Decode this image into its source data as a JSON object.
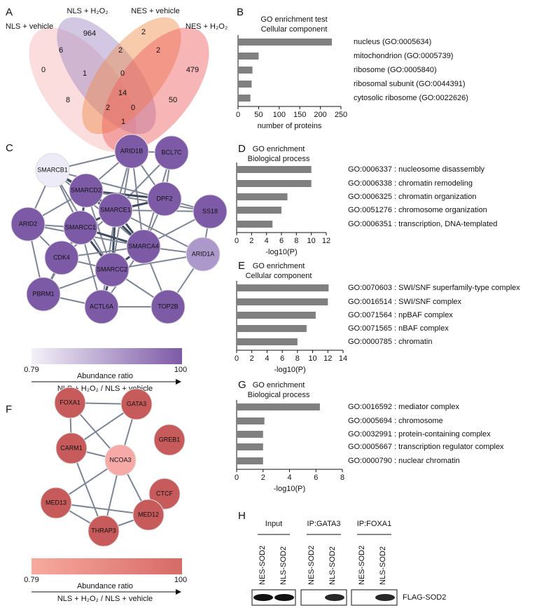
{
  "panels": {
    "a": {
      "letter": "A",
      "sets": [
        {
          "name": "NLS + vehicle",
          "color": "#f9b4b4"
        },
        {
          "name": "NLS + H₂O₂",
          "color": "#9b86c4"
        },
        {
          "name": "NES + vehicle",
          "color": "#ef8c4a"
        },
        {
          "name": "NES + H₂O₂",
          "color": "#ee5a5a"
        }
      ],
      "counts": [
        964,
        2,
        6,
        2,
        2,
        479,
        0,
        1,
        0,
        8,
        14,
        50,
        2,
        0,
        1
      ]
    },
    "b": {
      "letter": "B"
    },
    "c": {
      "letter": "C",
      "nodes": [
        {
          "label": "SMARCB1",
          "color": "#ecebf7"
        },
        {
          "label": "ARID1B",
          "color": "#7d5aa6"
        },
        {
          "label": "BCL7C",
          "color": "#7d5aa6"
        },
        {
          "label": "SMARCD2",
          "color": "#7d5aa6"
        },
        {
          "label": "DPF2",
          "color": "#7d5aa6"
        },
        {
          "label": "SS18",
          "color": "#7d5aa6"
        },
        {
          "label": "SMARCE1",
          "color": "#7d5aa6"
        },
        {
          "label": "ARID2",
          "color": "#7d5aa6"
        },
        {
          "label": "SMARCC1",
          "color": "#7d5aa6"
        },
        {
          "label": "SMARCA4",
          "color": "#7d5aa6"
        },
        {
          "label": "ARID1A",
          "color": "#ad98cb"
        },
        {
          "label": "CDK4",
          "color": "#7d5aa6"
        },
        {
          "label": "SMARCC2",
          "color": "#7d5aa6"
        },
        {
          "label": "PBRM1",
          "color": "#7d5aa6"
        },
        {
          "label": "ACTL6A",
          "color": "#7d5aa6"
        },
        {
          "label": "TOP2B",
          "color": "#7d5aa6"
        }
      ],
      "colorbar": {
        "colors": [
          "#f3f1f9",
          "#7d5aa6"
        ],
        "min_label": "0.79",
        "max_label": "100",
        "label": "Abundance ratio",
        "sublabel": "NLS + H₂O₂ / NLS + vehicle"
      }
    },
    "d": {
      "letter": "D"
    },
    "e": {
      "letter": "E"
    },
    "f": {
      "letter": "F",
      "nodes": [
        {
          "label": "FOXA1",
          "color": "#c75a5a"
        },
        {
          "label": "GATA3",
          "color": "#c75a5a"
        },
        {
          "label": "CARM1",
          "color": "#c75a5a"
        },
        {
          "label": "GREB1",
          "color": "#c75a5a"
        },
        {
          "label": "NCOA3",
          "color": "#f6a9a6"
        },
        {
          "label": "CTCF",
          "color": "#c75a5a"
        },
        {
          "label": "MED13",
          "color": "#c75a5a"
        },
        {
          "label": "MED12",
          "color": "#c75a5a"
        },
        {
          "label": "THRAP3",
          "color": "#c75a5a"
        }
      ],
      "colorbar": {
        "colors": [
          "#f8aa9e",
          "#d76a66"
        ],
        "min_label": "0.79",
        "max_label": "100",
        "label": "Abundance ratio",
        "sublabel": "NLS + H₂O₂ / NLS + vehicle"
      }
    },
    "g": {
      "letter": "G"
    },
    "h": {
      "letter": "H",
      "groups": [
        "Input",
        "IP:GATA3",
        "IP:FOXA1"
      ],
      "lanes": [
        "NES-SOD2",
        "NLS-SOD2"
      ],
      "band_label": "FLAG-SOD2"
    }
  },
  "chart_data": [
    {
      "type": "bar",
      "title": "GO enrichment test",
      "subtitle": "Cellular component",
      "categories": [
        "nucleus (GO:0005634)",
        "mitochondrion (GO:0005739)",
        "ribosome (GO:0005840)",
        "ribosomal subunit (GO:0044391)",
        "cytosolic ribosome (GO:0022626)"
      ],
      "values": [
        228,
        50,
        35,
        33,
        30
      ],
      "color": "#808080",
      "xlim": [
        0,
        250
      ],
      "xticks": [
        0,
        50,
        100,
        150,
        200,
        250
      ],
      "xlabel": "number of proteins"
    },
    {
      "type": "bar",
      "title": "GO enrichment",
      "subtitle": "Biological process",
      "categories": [
        "GO:0006337 : nucleosome disassembly",
        "GO:0006338 : chromatin remodeling",
        "GO:0006325 : chromatin organization",
        "GO:0051276 : chromosome organization",
        "GO:0006351 : transcription, DNA-templated"
      ],
      "values": [
        10,
        10,
        6.8,
        6,
        4.8
      ],
      "color": "#808080",
      "xlim": [
        0,
        12
      ],
      "xticks": [
        0,
        2,
        4,
        6,
        8,
        10,
        12
      ],
      "xlabel": "-log10(P)"
    },
    {
      "type": "bar",
      "title": "GO enrichment",
      "subtitle": "Cellular component",
      "categories": [
        "GO:0070603 : SWI/SNF superfamily-type complex",
        "GO:0016514 : SWI/SNF complex",
        "GO:0071564 : npBAF complex",
        "GO:0071565 : nBAF complex",
        "GO:0000785 : chromatin"
      ],
      "values": [
        12.1,
        12,
        10.4,
        9.2,
        8
      ],
      "color": "#808080",
      "xlim": [
        0,
        14
      ],
      "xticks": [
        0,
        2,
        4,
        6,
        8,
        10,
        12,
        14
      ],
      "xlabel": "-log10(P)"
    },
    {
      "type": "bar",
      "title": "GO enrichment",
      "subtitle": "Biological process",
      "categories": [
        "GO:0016592 : mediator complex",
        "GO:0005694 : chromosome",
        "GO:0032991 : protein-containing complex",
        "GO:0005667 : transcription regulator complex",
        "GO:0000790 : nuclear chromatin"
      ],
      "values": [
        6.3,
        2.1,
        2,
        2,
        2
      ],
      "color": "#808080",
      "xlim": [
        0,
        8
      ],
      "xticks": [
        0,
        2,
        4,
        6,
        8
      ],
      "xlabel": "-log10(P)"
    }
  ]
}
